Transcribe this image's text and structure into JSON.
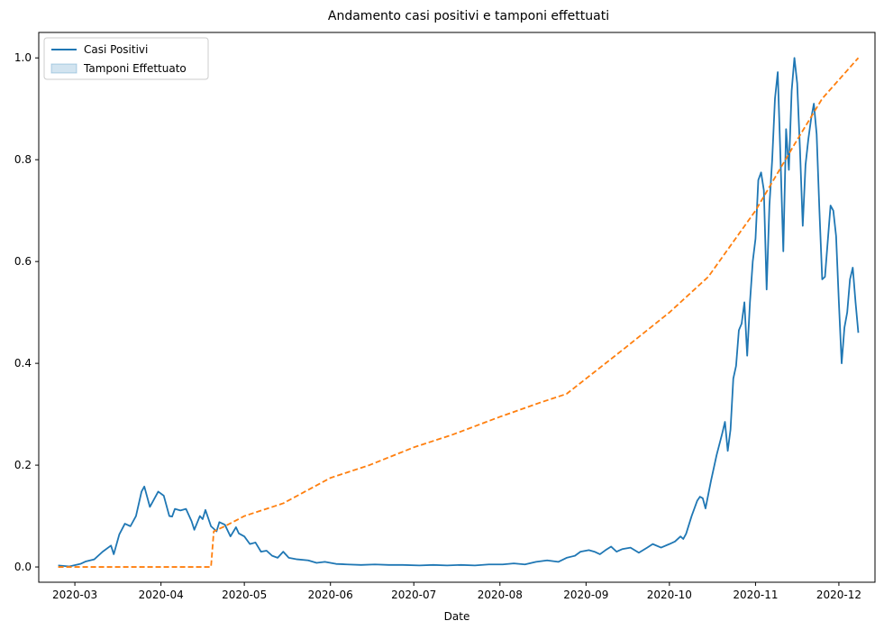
{
  "chart_data": {
    "type": "line",
    "title": "Andamento casi positivi e tamponi effettuati",
    "xlabel": "Date",
    "ylabel": "",
    "xlim": [
      "2020-02-17",
      "2020-12-14"
    ],
    "ylim": [
      -0.03,
      1.05
    ],
    "x_ticks": [
      "2020-03",
      "2020-04",
      "2020-05",
      "2020-06",
      "2020-07",
      "2020-08",
      "2020-09",
      "2020-10",
      "2020-11",
      "2020-12"
    ],
    "x_tick_dates": [
      "2020-03-01",
      "2020-04-01",
      "2020-05-01",
      "2020-06-01",
      "2020-07-01",
      "2020-08-01",
      "2020-09-01",
      "2020-10-01",
      "2020-11-01",
      "2020-12-01"
    ],
    "y_ticks": [
      "0.0",
      "0.2",
      "0.4",
      "0.6",
      "0.8",
      "1.0"
    ],
    "y_tick_values": [
      0,
      0.2,
      0.4,
      0.6,
      0.8,
      1.0
    ],
    "grid": false,
    "legend": {
      "position": "top-left",
      "entries": [
        {
          "label": "Casi Positivi",
          "kind": "line",
          "color": "#1f77b4"
        },
        {
          "label": "Tamponi Effettuato",
          "kind": "patch",
          "color": "#1f77b4"
        }
      ]
    },
    "series": [
      {
        "name": "Casi Positivi",
        "color": "#1f77b4",
        "style": "solid",
        "points": [
          [
            "2020-02-24",
            0.003
          ],
          [
            "2020-02-28",
            0.001
          ],
          [
            "2020-03-03",
            0.006
          ],
          [
            "2020-03-05",
            0.011
          ],
          [
            "2020-03-08",
            0.015
          ],
          [
            "2020-03-11",
            0.03
          ],
          [
            "2020-03-14",
            0.042
          ],
          [
            "2020-03-15",
            0.025
          ],
          [
            "2020-03-17",
            0.064
          ],
          [
            "2020-03-19",
            0.085
          ],
          [
            "2020-03-21",
            0.08
          ],
          [
            "2020-03-23",
            0.1
          ],
          [
            "2020-03-25",
            0.148
          ],
          [
            "2020-03-26",
            0.158
          ],
          [
            "2020-03-28",
            0.118
          ],
          [
            "2020-03-29",
            0.128
          ],
          [
            "2020-03-31",
            0.148
          ],
          [
            "2020-04-02",
            0.14
          ],
          [
            "2020-04-04",
            0.1
          ],
          [
            "2020-04-05",
            0.099
          ],
          [
            "2020-04-06",
            0.114
          ],
          [
            "2020-04-08",
            0.111
          ],
          [
            "2020-04-10",
            0.114
          ],
          [
            "2020-04-12",
            0.09
          ],
          [
            "2020-04-13",
            0.073
          ],
          [
            "2020-04-15",
            0.1
          ],
          [
            "2020-04-16",
            0.094
          ],
          [
            "2020-04-17",
            0.112
          ],
          [
            "2020-04-19",
            0.08
          ],
          [
            "2020-04-21",
            0.07
          ],
          [
            "2020-04-22",
            0.088
          ],
          [
            "2020-04-24",
            0.083
          ],
          [
            "2020-04-26",
            0.06
          ],
          [
            "2020-04-28",
            0.078
          ],
          [
            "2020-04-29",
            0.066
          ],
          [
            "2020-05-01",
            0.06
          ],
          [
            "2020-05-03",
            0.045
          ],
          [
            "2020-05-05",
            0.048
          ],
          [
            "2020-05-07",
            0.03
          ],
          [
            "2020-05-09",
            0.032
          ],
          [
            "2020-05-11",
            0.022
          ],
          [
            "2020-05-13",
            0.018
          ],
          [
            "2020-05-15",
            0.03
          ],
          [
            "2020-05-17",
            0.018
          ],
          [
            "2020-05-20",
            0.015
          ],
          [
            "2020-05-24",
            0.013
          ],
          [
            "2020-05-27",
            0.008
          ],
          [
            "2020-05-30",
            0.01
          ],
          [
            "2020-06-03",
            0.006
          ],
          [
            "2020-06-07",
            0.005
          ],
          [
            "2020-06-12",
            0.004
          ],
          [
            "2020-06-17",
            0.005
          ],
          [
            "2020-06-22",
            0.004
          ],
          [
            "2020-06-27",
            0.004
          ],
          [
            "2020-07-03",
            0.003
          ],
          [
            "2020-07-08",
            0.004
          ],
          [
            "2020-07-13",
            0.003
          ],
          [
            "2020-07-18",
            0.004
          ],
          [
            "2020-07-23",
            0.003
          ],
          [
            "2020-07-28",
            0.005
          ],
          [
            "2020-08-02",
            0.005
          ],
          [
            "2020-08-06",
            0.007
          ],
          [
            "2020-08-10",
            0.005
          ],
          [
            "2020-08-14",
            0.01
          ],
          [
            "2020-08-18",
            0.013
          ],
          [
            "2020-08-22",
            0.01
          ],
          [
            "2020-08-25",
            0.018
          ],
          [
            "2020-08-28",
            0.022
          ],
          [
            "2020-08-30",
            0.03
          ],
          [
            "2020-09-02",
            0.033
          ],
          [
            "2020-09-04",
            0.03
          ],
          [
            "2020-09-06",
            0.025
          ],
          [
            "2020-09-08",
            0.033
          ],
          [
            "2020-09-10",
            0.04
          ],
          [
            "2020-09-12",
            0.03
          ],
          [
            "2020-09-14",
            0.035
          ],
          [
            "2020-09-17",
            0.038
          ],
          [
            "2020-09-20",
            0.028
          ],
          [
            "2020-09-23",
            0.038
          ],
          [
            "2020-09-25",
            0.045
          ],
          [
            "2020-09-28",
            0.038
          ],
          [
            "2020-10-01",
            0.045
          ],
          [
            "2020-10-03",
            0.05
          ],
          [
            "2020-10-05",
            0.06
          ],
          [
            "2020-10-06",
            0.055
          ],
          [
            "2020-10-07",
            0.065
          ],
          [
            "2020-10-09",
            0.1
          ],
          [
            "2020-10-11",
            0.13
          ],
          [
            "2020-10-12",
            0.138
          ],
          [
            "2020-10-13",
            0.135
          ],
          [
            "2020-10-14",
            0.115
          ],
          [
            "2020-10-16",
            0.17
          ],
          [
            "2020-10-18",
            0.22
          ],
          [
            "2020-10-20",
            0.262
          ],
          [
            "2020-10-21",
            0.285
          ],
          [
            "2020-10-22",
            0.228
          ],
          [
            "2020-10-23",
            0.27
          ],
          [
            "2020-10-24",
            0.37
          ],
          [
            "2020-10-25",
            0.395
          ],
          [
            "2020-10-26",
            0.465
          ],
          [
            "2020-10-27",
            0.478
          ],
          [
            "2020-10-28",
            0.52
          ],
          [
            "2020-10-29",
            0.415
          ],
          [
            "2020-10-30",
            0.52
          ],
          [
            "2020-10-31",
            0.6
          ],
          [
            "2020-11-01",
            0.645
          ],
          [
            "2020-11-02",
            0.76
          ],
          [
            "2020-11-03",
            0.775
          ],
          [
            "2020-11-04",
            0.74
          ],
          [
            "2020-11-05",
            0.545
          ],
          [
            "2020-11-06",
            0.71
          ],
          [
            "2020-11-07",
            0.8
          ],
          [
            "2020-11-08",
            0.92
          ],
          [
            "2020-11-09",
            0.972
          ],
          [
            "2020-11-10",
            0.8
          ],
          [
            "2020-11-11",
            0.62
          ],
          [
            "2020-11-12",
            0.86
          ],
          [
            "2020-11-13",
            0.78
          ],
          [
            "2020-11-14",
            0.935
          ],
          [
            "2020-11-15",
            1.0
          ],
          [
            "2020-11-16",
            0.95
          ],
          [
            "2020-11-17",
            0.82
          ],
          [
            "2020-11-18",
            0.67
          ],
          [
            "2020-11-19",
            0.79
          ],
          [
            "2020-11-20",
            0.84
          ],
          [
            "2020-11-21",
            0.88
          ],
          [
            "2020-11-22",
            0.91
          ],
          [
            "2020-11-23",
            0.85
          ],
          [
            "2020-11-24",
            0.7
          ],
          [
            "2020-11-25",
            0.565
          ],
          [
            "2020-11-26",
            0.57
          ],
          [
            "2020-11-27",
            0.64
          ],
          [
            "2020-11-28",
            0.71
          ],
          [
            "2020-11-29",
            0.7
          ],
          [
            "2020-11-30",
            0.65
          ],
          [
            "2020-12-01",
            0.52
          ],
          [
            "2020-12-02",
            0.4
          ],
          [
            "2020-12-03",
            0.47
          ],
          [
            "2020-12-04",
            0.5
          ],
          [
            "2020-12-05",
            0.565
          ],
          [
            "2020-12-06",
            0.588
          ],
          [
            "2020-12-07",
            0.52
          ],
          [
            "2020-12-08",
            0.46
          ]
        ]
      },
      {
        "name": "",
        "color": "#ff7f0e",
        "style": "dashed",
        "points": [
          [
            "2020-02-24",
            0.0
          ],
          [
            "2020-04-19",
            0.0
          ],
          [
            "2020-04-20",
            0.07
          ],
          [
            "2020-04-24",
            0.08
          ],
          [
            "2020-05-01",
            0.1
          ],
          [
            "2020-05-15",
            0.125
          ],
          [
            "2020-06-01",
            0.175
          ],
          [
            "2020-06-15",
            0.2
          ],
          [
            "2020-07-01",
            0.235
          ],
          [
            "2020-07-15",
            0.26
          ],
          [
            "2020-08-01",
            0.295
          ],
          [
            "2020-08-15",
            0.322
          ],
          [
            "2020-08-25",
            0.34
          ],
          [
            "2020-09-01",
            0.37
          ],
          [
            "2020-09-15",
            0.43
          ],
          [
            "2020-10-01",
            0.5
          ],
          [
            "2020-10-15",
            0.57
          ],
          [
            "2020-11-01",
            0.7
          ],
          [
            "2020-11-15",
            0.83
          ],
          [
            "2020-11-25",
            0.92
          ],
          [
            "2020-12-08",
            1.0
          ]
        ]
      }
    ]
  }
}
